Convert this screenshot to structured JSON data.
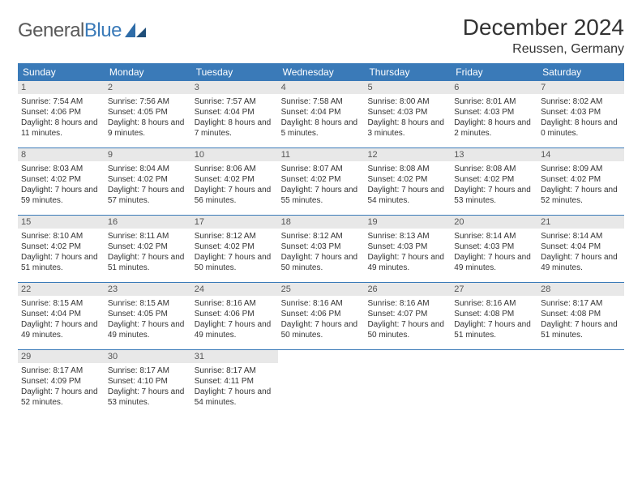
{
  "logo": {
    "text1": "General",
    "text2": "Blue"
  },
  "title": "December 2024",
  "location": "Reussen, Germany",
  "day_headers": [
    "Sunday",
    "Monday",
    "Tuesday",
    "Wednesday",
    "Thursday",
    "Friday",
    "Saturday"
  ],
  "colors": {
    "header_bg": "#3a7ab8",
    "header_text": "#ffffff",
    "daynum_bg": "#e8e8e8",
    "week_divider": "#3a7ab8",
    "logo_gray": "#5a5a5a",
    "logo_blue": "#3a7ab8",
    "body_text": "#333333"
  },
  "weeks": [
    [
      {
        "n": "1",
        "sr": "7:54 AM",
        "ss": "4:06 PM",
        "dl": "8 hours and 11 minutes."
      },
      {
        "n": "2",
        "sr": "7:56 AM",
        "ss": "4:05 PM",
        "dl": "8 hours and 9 minutes."
      },
      {
        "n": "3",
        "sr": "7:57 AM",
        "ss": "4:04 PM",
        "dl": "8 hours and 7 minutes."
      },
      {
        "n": "4",
        "sr": "7:58 AM",
        "ss": "4:04 PM",
        "dl": "8 hours and 5 minutes."
      },
      {
        "n": "5",
        "sr": "8:00 AM",
        "ss": "4:03 PM",
        "dl": "8 hours and 3 minutes."
      },
      {
        "n": "6",
        "sr": "8:01 AM",
        "ss": "4:03 PM",
        "dl": "8 hours and 2 minutes."
      },
      {
        "n": "7",
        "sr": "8:02 AM",
        "ss": "4:03 PM",
        "dl": "8 hours and 0 minutes."
      }
    ],
    [
      {
        "n": "8",
        "sr": "8:03 AM",
        "ss": "4:02 PM",
        "dl": "7 hours and 59 minutes."
      },
      {
        "n": "9",
        "sr": "8:04 AM",
        "ss": "4:02 PM",
        "dl": "7 hours and 57 minutes."
      },
      {
        "n": "10",
        "sr": "8:06 AM",
        "ss": "4:02 PM",
        "dl": "7 hours and 56 minutes."
      },
      {
        "n": "11",
        "sr": "8:07 AM",
        "ss": "4:02 PM",
        "dl": "7 hours and 55 minutes."
      },
      {
        "n": "12",
        "sr": "8:08 AM",
        "ss": "4:02 PM",
        "dl": "7 hours and 54 minutes."
      },
      {
        "n": "13",
        "sr": "8:08 AM",
        "ss": "4:02 PM",
        "dl": "7 hours and 53 minutes."
      },
      {
        "n": "14",
        "sr": "8:09 AM",
        "ss": "4:02 PM",
        "dl": "7 hours and 52 minutes."
      }
    ],
    [
      {
        "n": "15",
        "sr": "8:10 AM",
        "ss": "4:02 PM",
        "dl": "7 hours and 51 minutes."
      },
      {
        "n": "16",
        "sr": "8:11 AM",
        "ss": "4:02 PM",
        "dl": "7 hours and 51 minutes."
      },
      {
        "n": "17",
        "sr": "8:12 AM",
        "ss": "4:02 PM",
        "dl": "7 hours and 50 minutes."
      },
      {
        "n": "18",
        "sr": "8:12 AM",
        "ss": "4:03 PM",
        "dl": "7 hours and 50 minutes."
      },
      {
        "n": "19",
        "sr": "8:13 AM",
        "ss": "4:03 PM",
        "dl": "7 hours and 49 minutes."
      },
      {
        "n": "20",
        "sr": "8:14 AM",
        "ss": "4:03 PM",
        "dl": "7 hours and 49 minutes."
      },
      {
        "n": "21",
        "sr": "8:14 AM",
        "ss": "4:04 PM",
        "dl": "7 hours and 49 minutes."
      }
    ],
    [
      {
        "n": "22",
        "sr": "8:15 AM",
        "ss": "4:04 PM",
        "dl": "7 hours and 49 minutes."
      },
      {
        "n": "23",
        "sr": "8:15 AM",
        "ss": "4:05 PM",
        "dl": "7 hours and 49 minutes."
      },
      {
        "n": "24",
        "sr": "8:16 AM",
        "ss": "4:06 PM",
        "dl": "7 hours and 49 minutes."
      },
      {
        "n": "25",
        "sr": "8:16 AM",
        "ss": "4:06 PM",
        "dl": "7 hours and 50 minutes."
      },
      {
        "n": "26",
        "sr": "8:16 AM",
        "ss": "4:07 PM",
        "dl": "7 hours and 50 minutes."
      },
      {
        "n": "27",
        "sr": "8:16 AM",
        "ss": "4:08 PM",
        "dl": "7 hours and 51 minutes."
      },
      {
        "n": "28",
        "sr": "8:17 AM",
        "ss": "4:08 PM",
        "dl": "7 hours and 51 minutes."
      }
    ],
    [
      {
        "n": "29",
        "sr": "8:17 AM",
        "ss": "4:09 PM",
        "dl": "7 hours and 52 minutes."
      },
      {
        "n": "30",
        "sr": "8:17 AM",
        "ss": "4:10 PM",
        "dl": "7 hours and 53 minutes."
      },
      {
        "n": "31",
        "sr": "8:17 AM",
        "ss": "4:11 PM",
        "dl": "7 hours and 54 minutes."
      },
      null,
      null,
      null,
      null
    ]
  ],
  "labels": {
    "sunrise": "Sunrise:",
    "sunset": "Sunset:",
    "daylight": "Daylight:"
  }
}
